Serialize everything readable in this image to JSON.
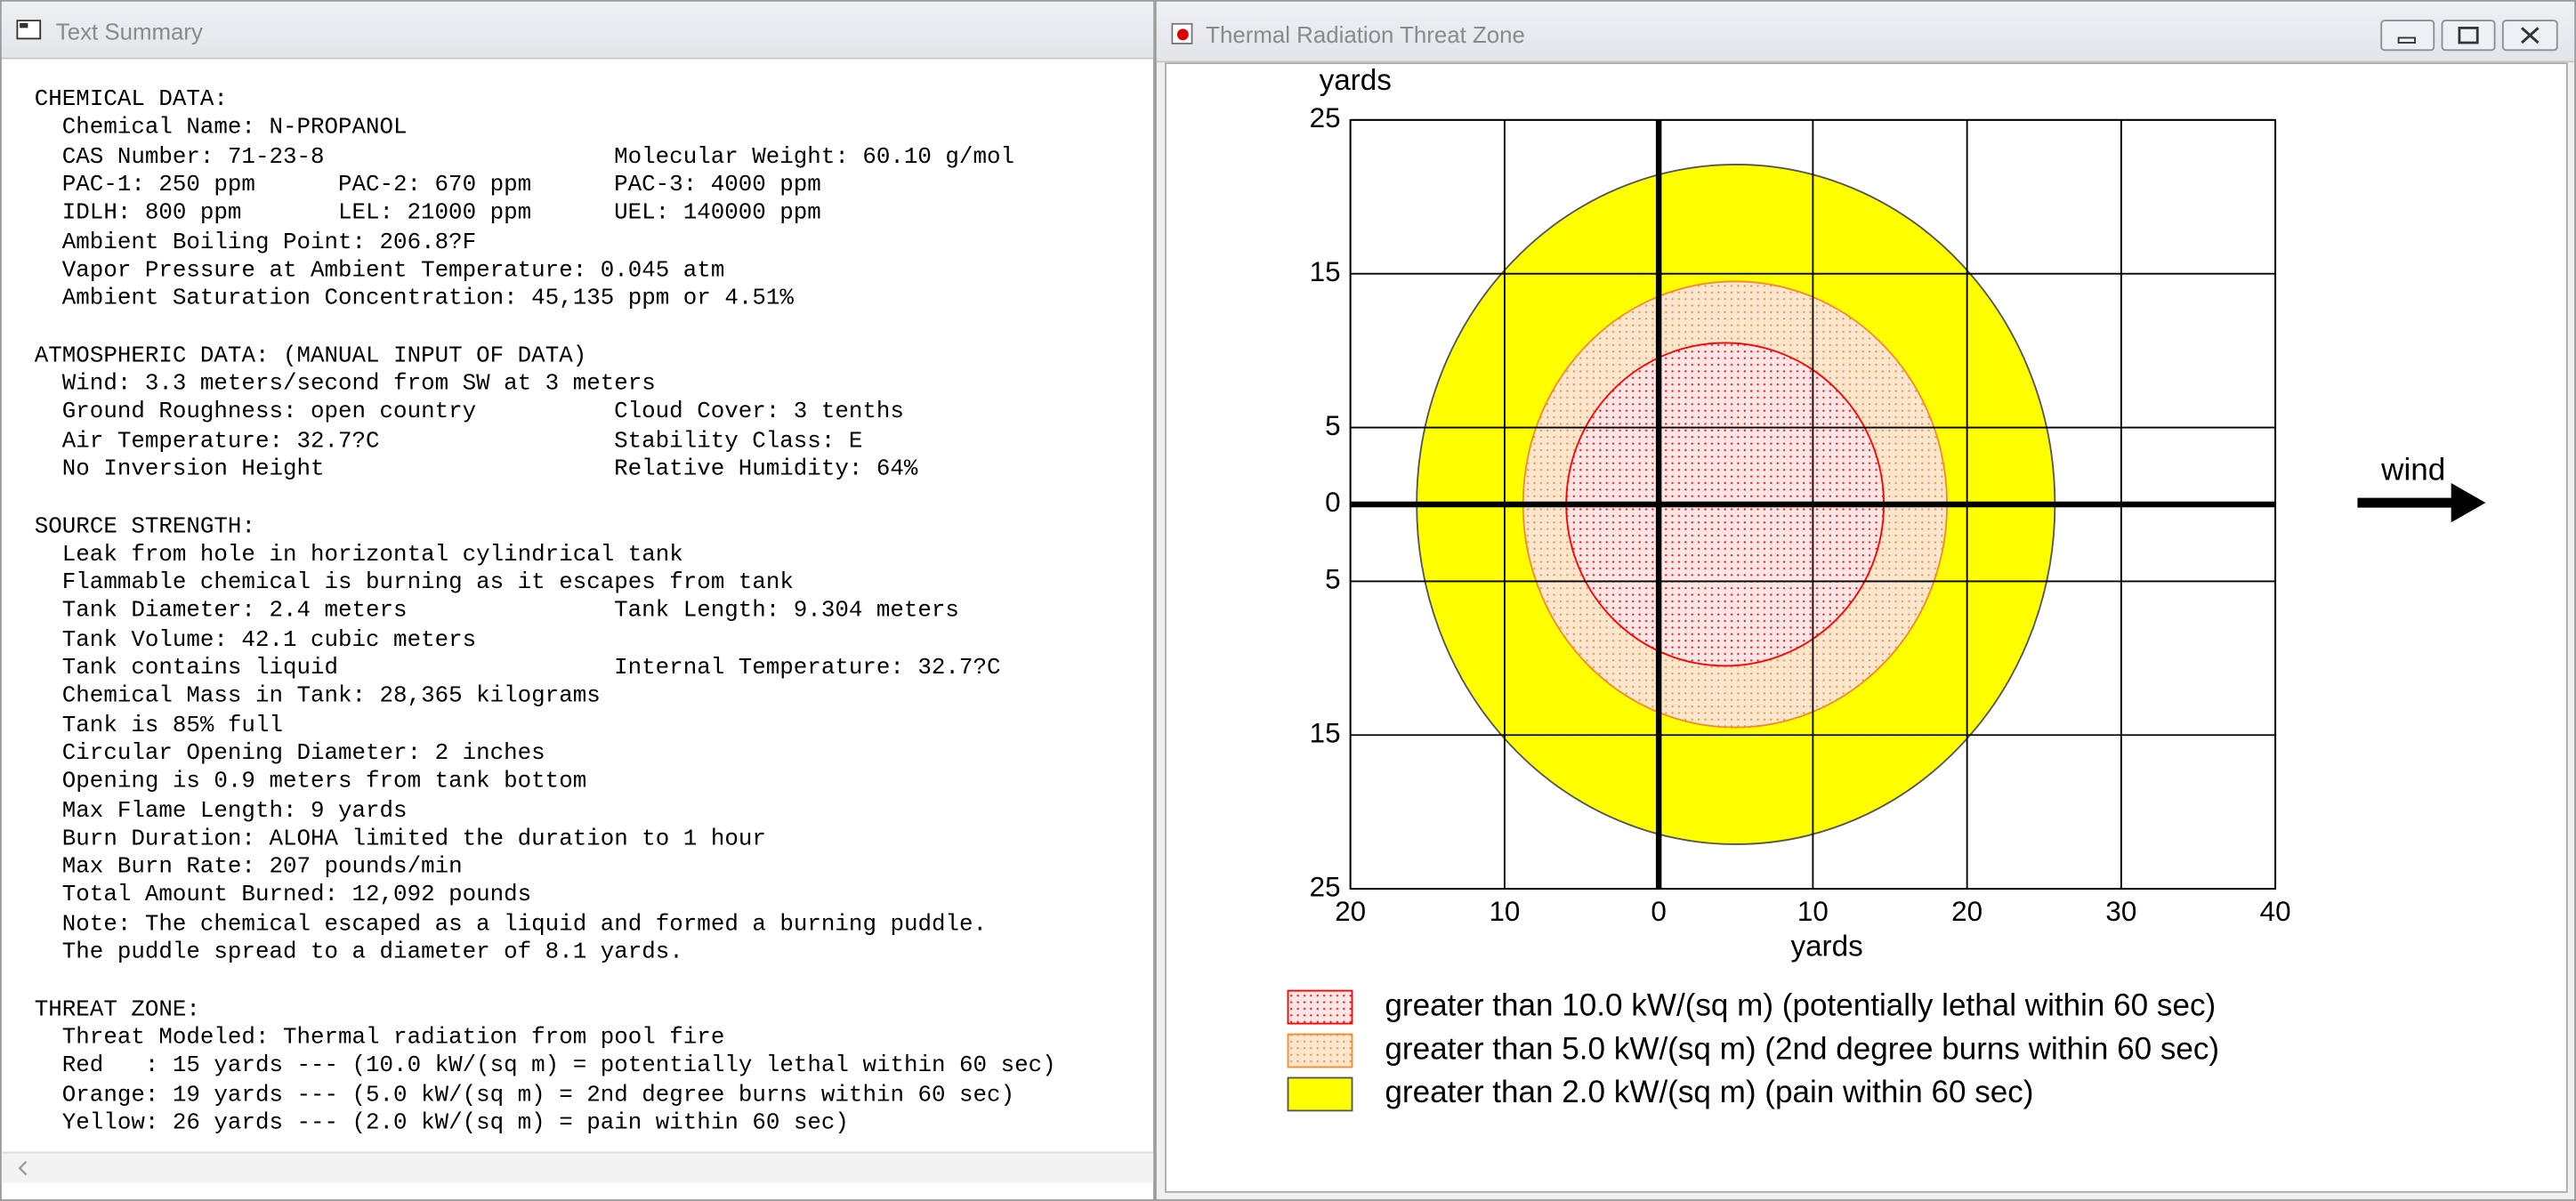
{
  "windows": {
    "text_summary": {
      "title": "Text Summary",
      "sections": [
        {
          "heading": "CHEMICAL DATA:",
          "lines": [
            [
              "Chemical Name: N-PROPANOL"
            ],
            [
              "CAS Number: 71-23-8",
              "Molecular Weight: 60.10 g/mol"
            ],
            [
              "PAC-1: 250 ppm",
              "PAC-2: 670 ppm",
              "PAC-3: 4000 ppm"
            ],
            [
              "IDLH: 800 ppm",
              "LEL: 21000 ppm",
              "UEL: 140000 ppm"
            ],
            [
              "Ambient Boiling Point: 206.8?F"
            ],
            [
              "Vapor Pressure at Ambient Temperature: 0.045 atm"
            ],
            [
              "Ambient Saturation Concentration: 45,135 ppm or 4.51%"
            ]
          ]
        },
        {
          "heading": "ATMOSPHERIC DATA: (MANUAL INPUT OF DATA)",
          "lines": [
            [
              "Wind: 3.3 meters/second from SW at 3 meters"
            ],
            [
              "Ground Roughness: open country",
              "Cloud Cover: 3 tenths"
            ],
            [
              "Air Temperature: 32.7?C",
              "Stability Class: E"
            ],
            [
              "No Inversion Height",
              "Relative Humidity: 64%"
            ]
          ]
        },
        {
          "heading": "SOURCE STRENGTH:",
          "lines": [
            [
              "Leak from hole in horizontal cylindrical tank"
            ],
            [
              "Flammable chemical is burning as it escapes from tank"
            ],
            [
              "Tank Diameter: 2.4 meters",
              "Tank Length: 9.304 meters"
            ],
            [
              "Tank Volume: 42.1 cubic meters"
            ],
            [
              "Tank contains liquid",
              "Internal Temperature: 32.7?C"
            ],
            [
              "Chemical Mass in Tank: 28,365 kilograms"
            ],
            [
              "Tank is 85% full"
            ],
            [
              "Circular Opening Diameter: 2 inches"
            ],
            [
              "Opening is 0.9 meters from tank bottom"
            ],
            [
              "Max Flame Length: 9 yards"
            ],
            [
              "Burn Duration: ALOHA limited the duration to 1 hour"
            ],
            [
              "Max Burn Rate: 207 pounds/min"
            ],
            [
              "Total Amount Burned: 12,092 pounds"
            ],
            [
              "Note: The chemical escaped as a liquid and formed a burning puddle."
            ],
            [
              "The puddle spread to a diameter of 8.1 yards."
            ]
          ]
        },
        {
          "heading": "THREAT ZONE:",
          "lines": [
            [
              "Threat Modeled: Thermal radiation from pool fire"
            ],
            [
              "Red   : 15 yards --- (10.0 kW/(sq m) = potentially lethal within 60 sec)"
            ],
            [
              "Orange: 19 yards --- (5.0 kW/(sq m) = 2nd degree burns within 60 sec)"
            ],
            [
              "Yellow: 26 yards --- (2.0 kW/(sq m) = pain within 60 sec)"
            ]
          ]
        }
      ]
    },
    "threat_zone": {
      "title": "Thermal Radiation Threat Zone"
    }
  },
  "chart_data": {
    "type": "zone",
    "x_label": "yards",
    "y_label": "yards",
    "annotation": "wind",
    "xlim": [
      -20,
      40
    ],
    "xticks": [
      {
        "value": -20,
        "label": "20"
      },
      {
        "value": -10,
        "label": "10"
      },
      0,
      10,
      20,
      30,
      40
    ],
    "ylim": [
      -25,
      25
    ],
    "yticks": [
      25,
      15,
      5,
      0,
      {
        "value": -5,
        "label": "5"
      },
      {
        "value": -15,
        "label": "15"
      },
      {
        "value": -25,
        "label": "25"
      }
    ],
    "grid": true,
    "series": [
      {
        "name": "greater than 10.0 kW/(sq m) (potentially lethal within 60 sec)",
        "color": "#fde6e6",
        "edge": "#ff0000",
        "x_min": -6,
        "x_max": 14.6,
        "half_width": 10.5
      },
      {
        "name": "greater than 5.0 kW/(sq m) (2nd degree burns within 60 sec)",
        "color": "#fbe6cf",
        "edge": "#f28c28",
        "x_min": -8.8,
        "x_max": 18.7,
        "half_width": 14.5
      },
      {
        "name": "greater than 2.0 kW/(sq m) (pain within 60 sec)",
        "color": "#ffff00",
        "edge": "#555555",
        "x_min": -15.7,
        "x_max": 25.7,
        "half_width": 22.1
      }
    ]
  }
}
